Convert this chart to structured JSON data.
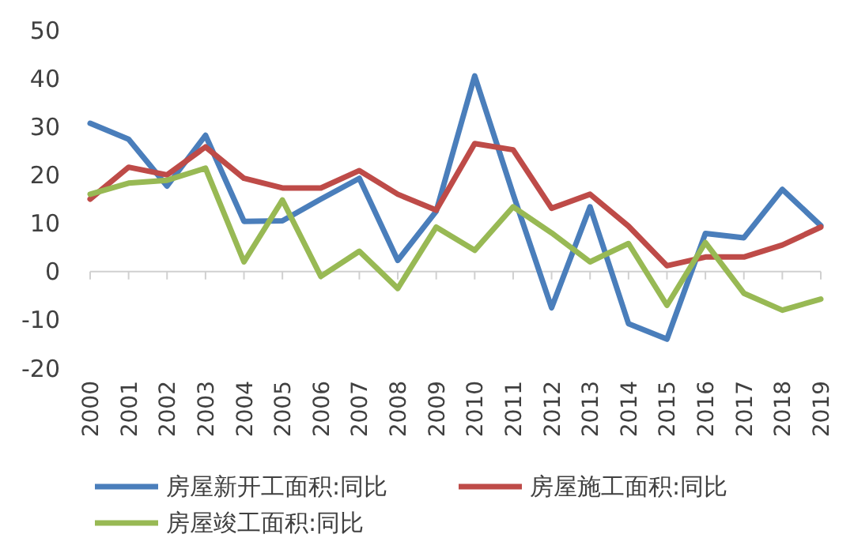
{
  "chart_data": {
    "type": "line",
    "categories": [
      "2000",
      "2001",
      "2002",
      "2003",
      "2004",
      "2005",
      "2006",
      "2007",
      "2008",
      "2009",
      "2010",
      "2011",
      "2012",
      "2013",
      "2014",
      "2015",
      "2016",
      "2017",
      "2018",
      "2019"
    ],
    "series": [
      {
        "name": "房屋新开工面积:同比",
        "color": "#4a7ebb",
        "values": [
          30.7,
          27.4,
          17.7,
          28.2,
          10.4,
          10.5,
          15,
          19.3,
          2.3,
          12.5,
          40.5,
          16,
          -7.5,
          13.4,
          -10.8,
          -14,
          7.9,
          7,
          17,
          9.5
        ]
      },
      {
        "name": "房屋施工面积:同比",
        "color": "#be4b48",
        "values": [
          15,
          21.6,
          20,
          25.8,
          19.3,
          17.3,
          17.3,
          20.9,
          16,
          12.7,
          26.5,
          25.2,
          13.1,
          16,
          9.4,
          1.2,
          3,
          3,
          5.5,
          9.2
        ]
      },
      {
        "name": "房屋竣工面积:同比",
        "color": "#98b954",
        "values": [
          16,
          18.3,
          18.9,
          21.4,
          2,
          14.8,
          -1,
          4.2,
          -3.5,
          9.2,
          4.4,
          13.4,
          8,
          2,
          5.8,
          -7,
          6,
          -4.5,
          -8,
          -5.7
        ]
      }
    ],
    "ylim": [
      -20,
      50
    ],
    "yticks": [
      -20,
      -10,
      0,
      10,
      20,
      30,
      40,
      50
    ],
    "legend": "bottom",
    "marker": "none",
    "line_style": "solid"
  }
}
